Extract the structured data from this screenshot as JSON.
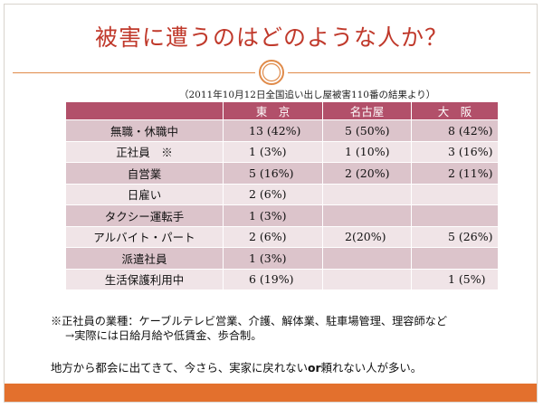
{
  "title": "被害に遭うのはどのような人か？",
  "source": "（2011年10月12日全国追い出し屋被害110番の結果より）",
  "table": {
    "headers": [
      "",
      "東　京",
      "名古屋",
      "大　阪"
    ],
    "rows": [
      {
        "label": "無職・休職中",
        "tokyo": "13 (42%)",
        "nagoya": "5 (50%)",
        "osaka": "8  (42%)"
      },
      {
        "label": "正社員　※",
        "tokyo": "1 (3%)",
        "nagoya": "1 (10%)",
        "osaka": "3  (16%)"
      },
      {
        "label": "自営業",
        "tokyo": "5 (16%)",
        "nagoya": "2 (20%)",
        "osaka": "2 (11%)"
      },
      {
        "label": "日雇い",
        "tokyo": "2 (6%)",
        "nagoya": "",
        "osaka": ""
      },
      {
        "label": "タクシー運転手",
        "tokyo": "1 (3%)",
        "nagoya": "",
        "osaka": ""
      },
      {
        "label": "アルバイト・パート",
        "tokyo": "2 (6%)",
        "nagoya": "2(20%)",
        "osaka": "5 (26%)"
      },
      {
        "label": "派遣社員",
        "tokyo": "1 (3%)",
        "nagoya": "",
        "osaka": ""
      },
      {
        "label": "生活保護利用中",
        "tokyo": "6 (19%)",
        "nagoya": "",
        "osaka": "1 (5%)"
      }
    ]
  },
  "note_line1": "※正社員の業種：ケーブルテレビ営業、介護、解体業、駐車場管理、理容師など",
  "note_line2": "→実際には日給月給や低賃金、歩合制。",
  "conclusion_before": "地方から都会に出てきて、今さら、実家に戻れない",
  "conclusion_bold": "or",
  "conclusion_after": "頼れない人が多い。",
  "colors": {
    "title": "#c0392b",
    "header_bg": "#b2506a",
    "row_dark": "#dcc4cb",
    "row_light": "#f0e4e7",
    "footer_bar": "#e3702d",
    "ornament": "#e08b4a"
  }
}
